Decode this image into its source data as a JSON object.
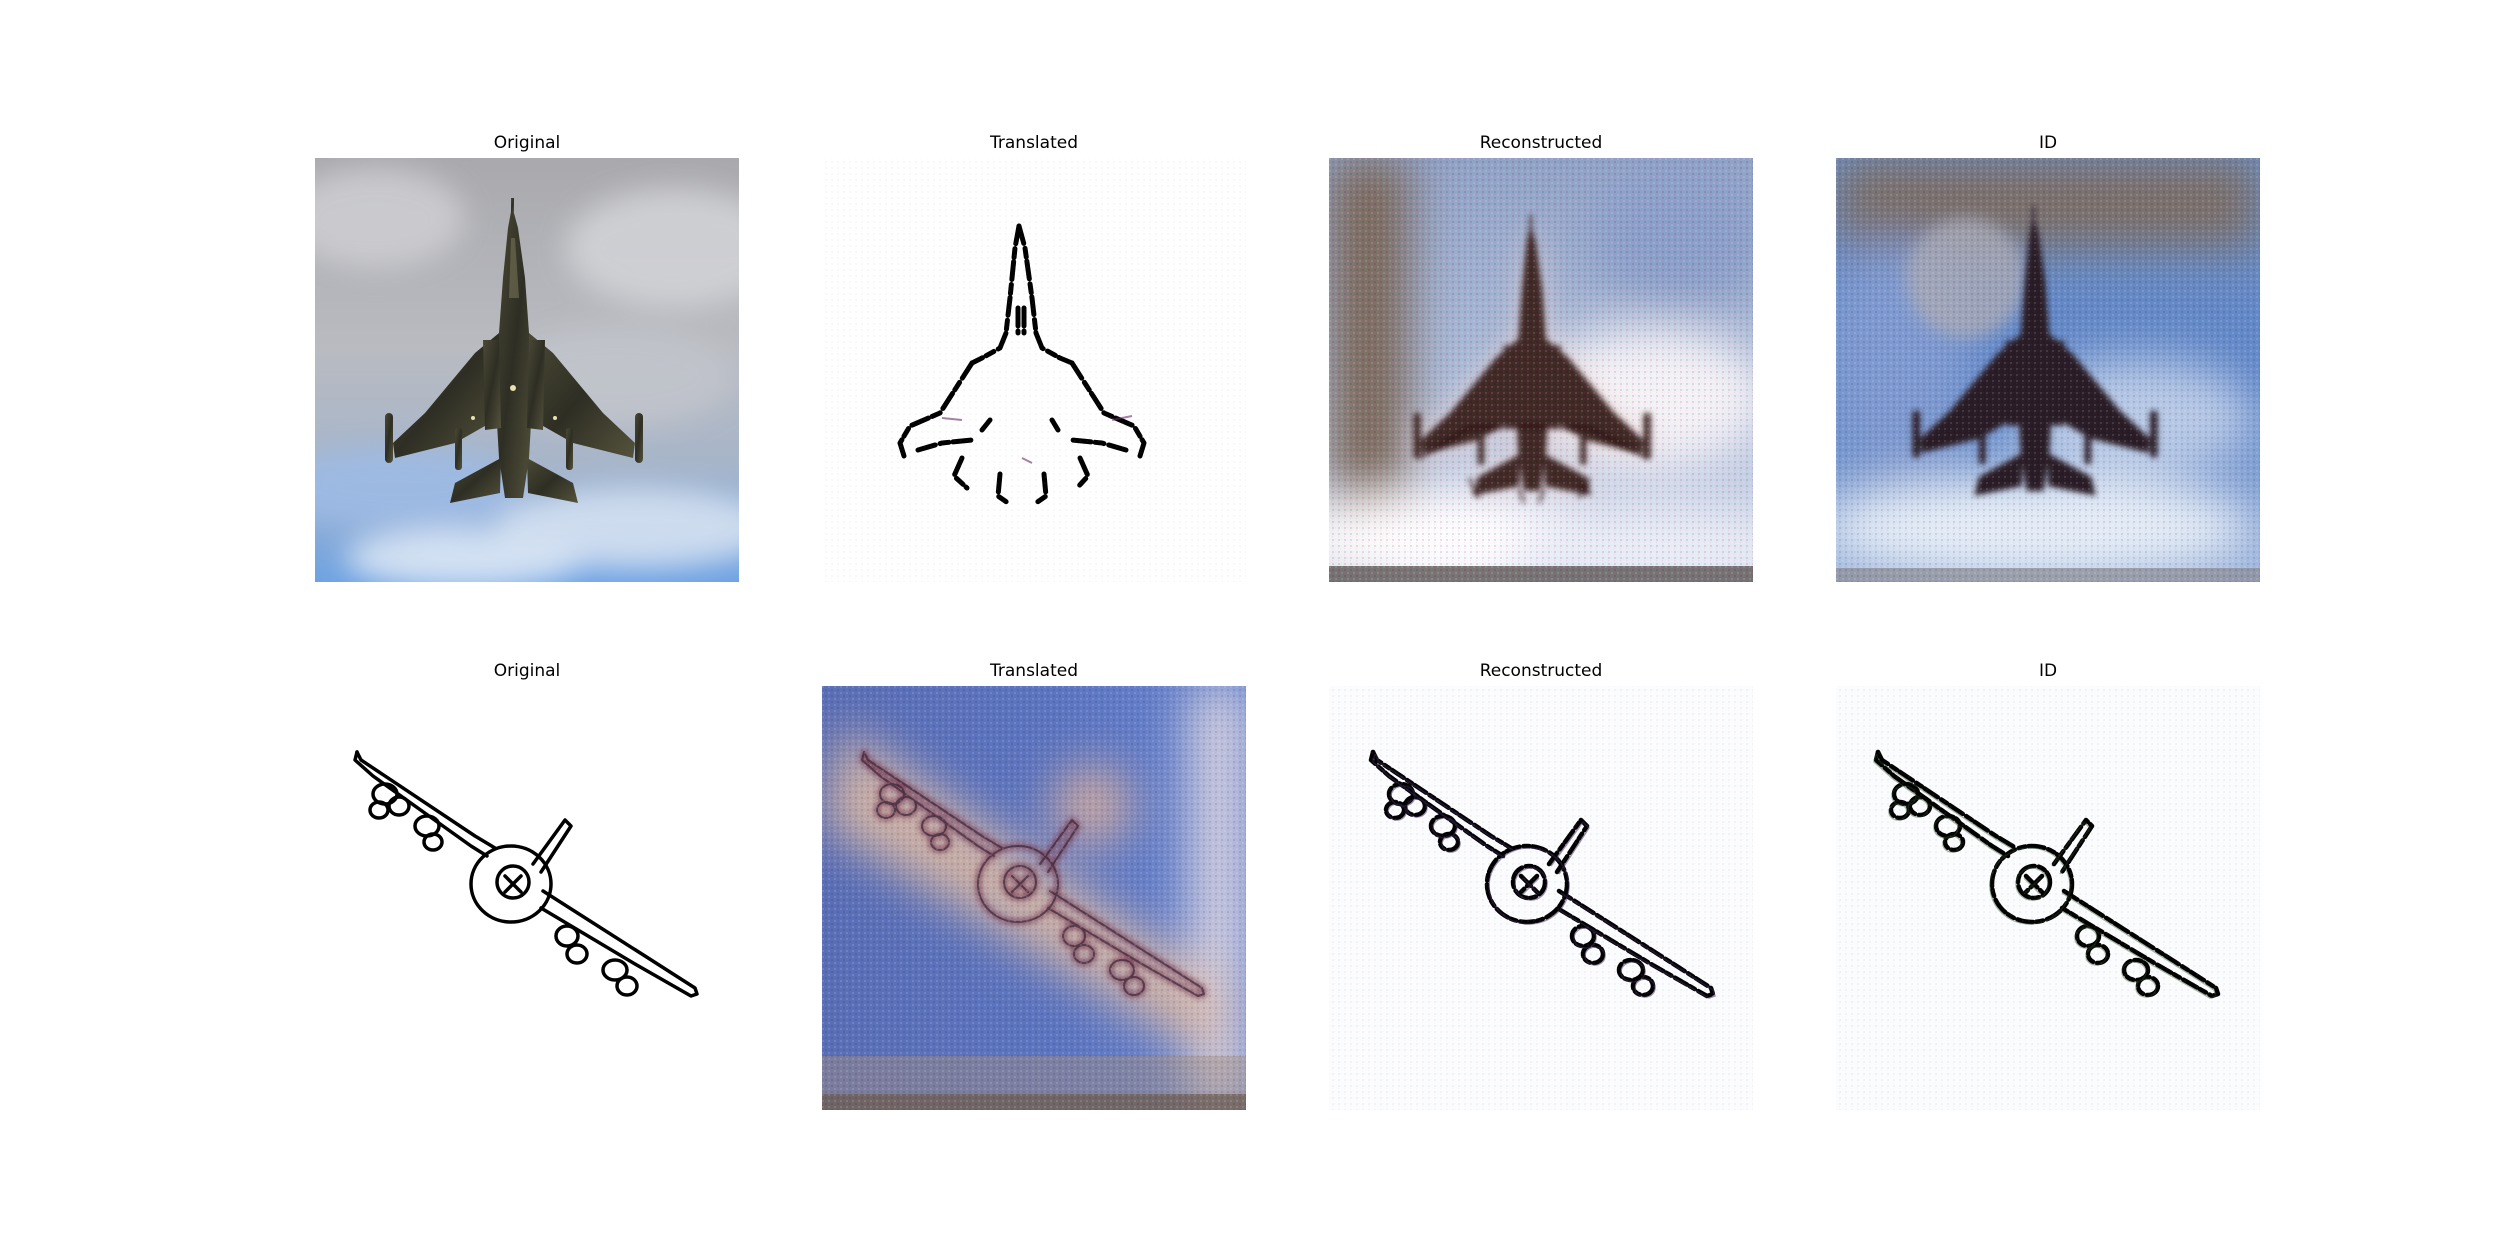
{
  "rows": [
    {
      "panels": [
        {
          "title": "Original"
        },
        {
          "title": "Translated"
        },
        {
          "title": "Reconstructed"
        },
        {
          "title": "ID"
        }
      ]
    },
    {
      "panels": [
        {
          "title": "Original"
        },
        {
          "title": "Translated"
        },
        {
          "title": "Reconstructed"
        },
        {
          "title": "ID"
        }
      ]
    }
  ]
}
